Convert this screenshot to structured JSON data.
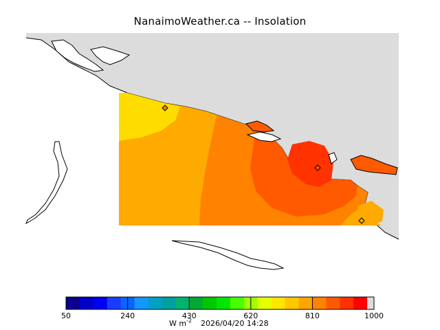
{
  "title": "NanaimoWeather.ca -- Insolation",
  "legend": {
    "units_base": "W m",
    "units_exp": "-2",
    "timestamp": "2026/04/20 14:28",
    "ticks": [
      "50",
      "240",
      "430",
      "620",
      "810",
      "1000"
    ],
    "colors": [
      "#0b008f",
      "#0000c8",
      "#0000f0",
      "#1a3cff",
      "#0a64ff",
      "#1496ff",
      "#00a0c8",
      "#00a0a0",
      "#00b46e",
      "#00aa32",
      "#00c800",
      "#00e600",
      "#46ff00",
      "#a0ff00",
      "#e6ff00",
      "#ffe600",
      "#ffc800",
      "#ffa500",
      "#ff8200",
      "#ff5a00",
      "#ff3200",
      "#ff0000",
      "#dcdcdc"
    ]
  },
  "map": {
    "land_color": "#dcdcdc",
    "contour_colors": [
      "#ffdc00",
      "#ffaa00",
      "#ff8200",
      "#ff5a00",
      "#ff3200"
    ],
    "stations": [
      "station-nw",
      "station-central",
      "station-se"
    ]
  }
}
